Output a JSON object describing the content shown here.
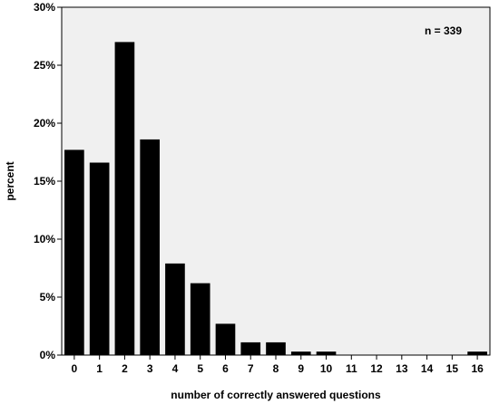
{
  "chart_data": {
    "type": "bar",
    "categories": [
      "0",
      "1",
      "2",
      "3",
      "4",
      "5",
      "6",
      "7",
      "8",
      "9",
      "10",
      "11",
      "12",
      "13",
      "14",
      "15",
      "16"
    ],
    "values": [
      17.7,
      16.6,
      27.0,
      18.6,
      7.9,
      6.2,
      2.7,
      1.1,
      1.1,
      0.3,
      0.3,
      0,
      0,
      0,
      0,
      0,
      0.3
    ],
    "xlabel": "number of correctly answered questions",
    "ylabel": "percent",
    "ylim": [
      0,
      30
    ],
    "yticks": [
      0,
      5,
      10,
      15,
      20,
      25,
      30
    ],
    "ytick_labels": [
      "0%",
      "5%",
      "10%",
      "15%",
      "20%",
      "25%",
      "30%"
    ],
    "annotation": "n = 339",
    "grid": false,
    "colors": {
      "bar": "#000000",
      "plot_background": "#f0f0f0",
      "axis": "#000000"
    }
  }
}
